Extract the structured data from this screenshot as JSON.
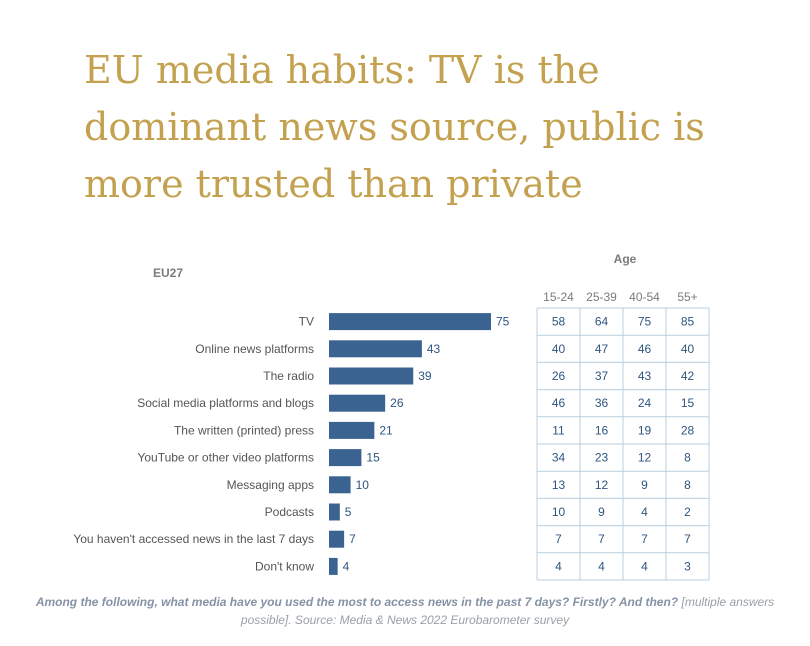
{
  "headline": "EU media habits: TV is the dominant news source, public is more trusted than private",
  "colors": {
    "headline": "#c3a14e",
    "bar": "#3a6391",
    "value_text": "#2f557f",
    "grid": "#b9cfe0"
  },
  "chart_data": {
    "type": "bar",
    "orientation": "horizontal",
    "region_label": "EU27",
    "categories": [
      "TV",
      "Online news platforms",
      "The radio",
      "Social media platforms and blogs",
      "The written (printed) press",
      "YouTube or other video platforms",
      "Messaging apps",
      "Podcasts",
      "You haven't accessed news in the last 7 days",
      "Don't know"
    ],
    "values": [
      75,
      43,
      39,
      26,
      21,
      15,
      10,
      5,
      7,
      4
    ],
    "xlim": [
      0,
      75
    ],
    "grid": false,
    "age_table": {
      "title": "Age",
      "columns": [
        "15-24",
        "25-39",
        "40-54",
        "55+"
      ],
      "rows": [
        [
          58,
          64,
          75,
          85
        ],
        [
          40,
          47,
          46,
          40
        ],
        [
          26,
          37,
          43,
          42
        ],
        [
          46,
          36,
          24,
          15
        ],
        [
          11,
          16,
          19,
          28
        ],
        [
          34,
          23,
          12,
          8
        ],
        [
          13,
          12,
          9,
          8
        ],
        [
          10,
          9,
          4,
          2
        ],
        [
          7,
          7,
          7,
          7
        ],
        [
          4,
          4,
          4,
          3
        ]
      ]
    }
  },
  "caption": {
    "question": "Among the following, what media have you used the most to access news in the past 7 days? Firstly? And then?",
    "note": "[multiple answers possible]. Source: Media & News 2022 Eurobarometer survey"
  }
}
